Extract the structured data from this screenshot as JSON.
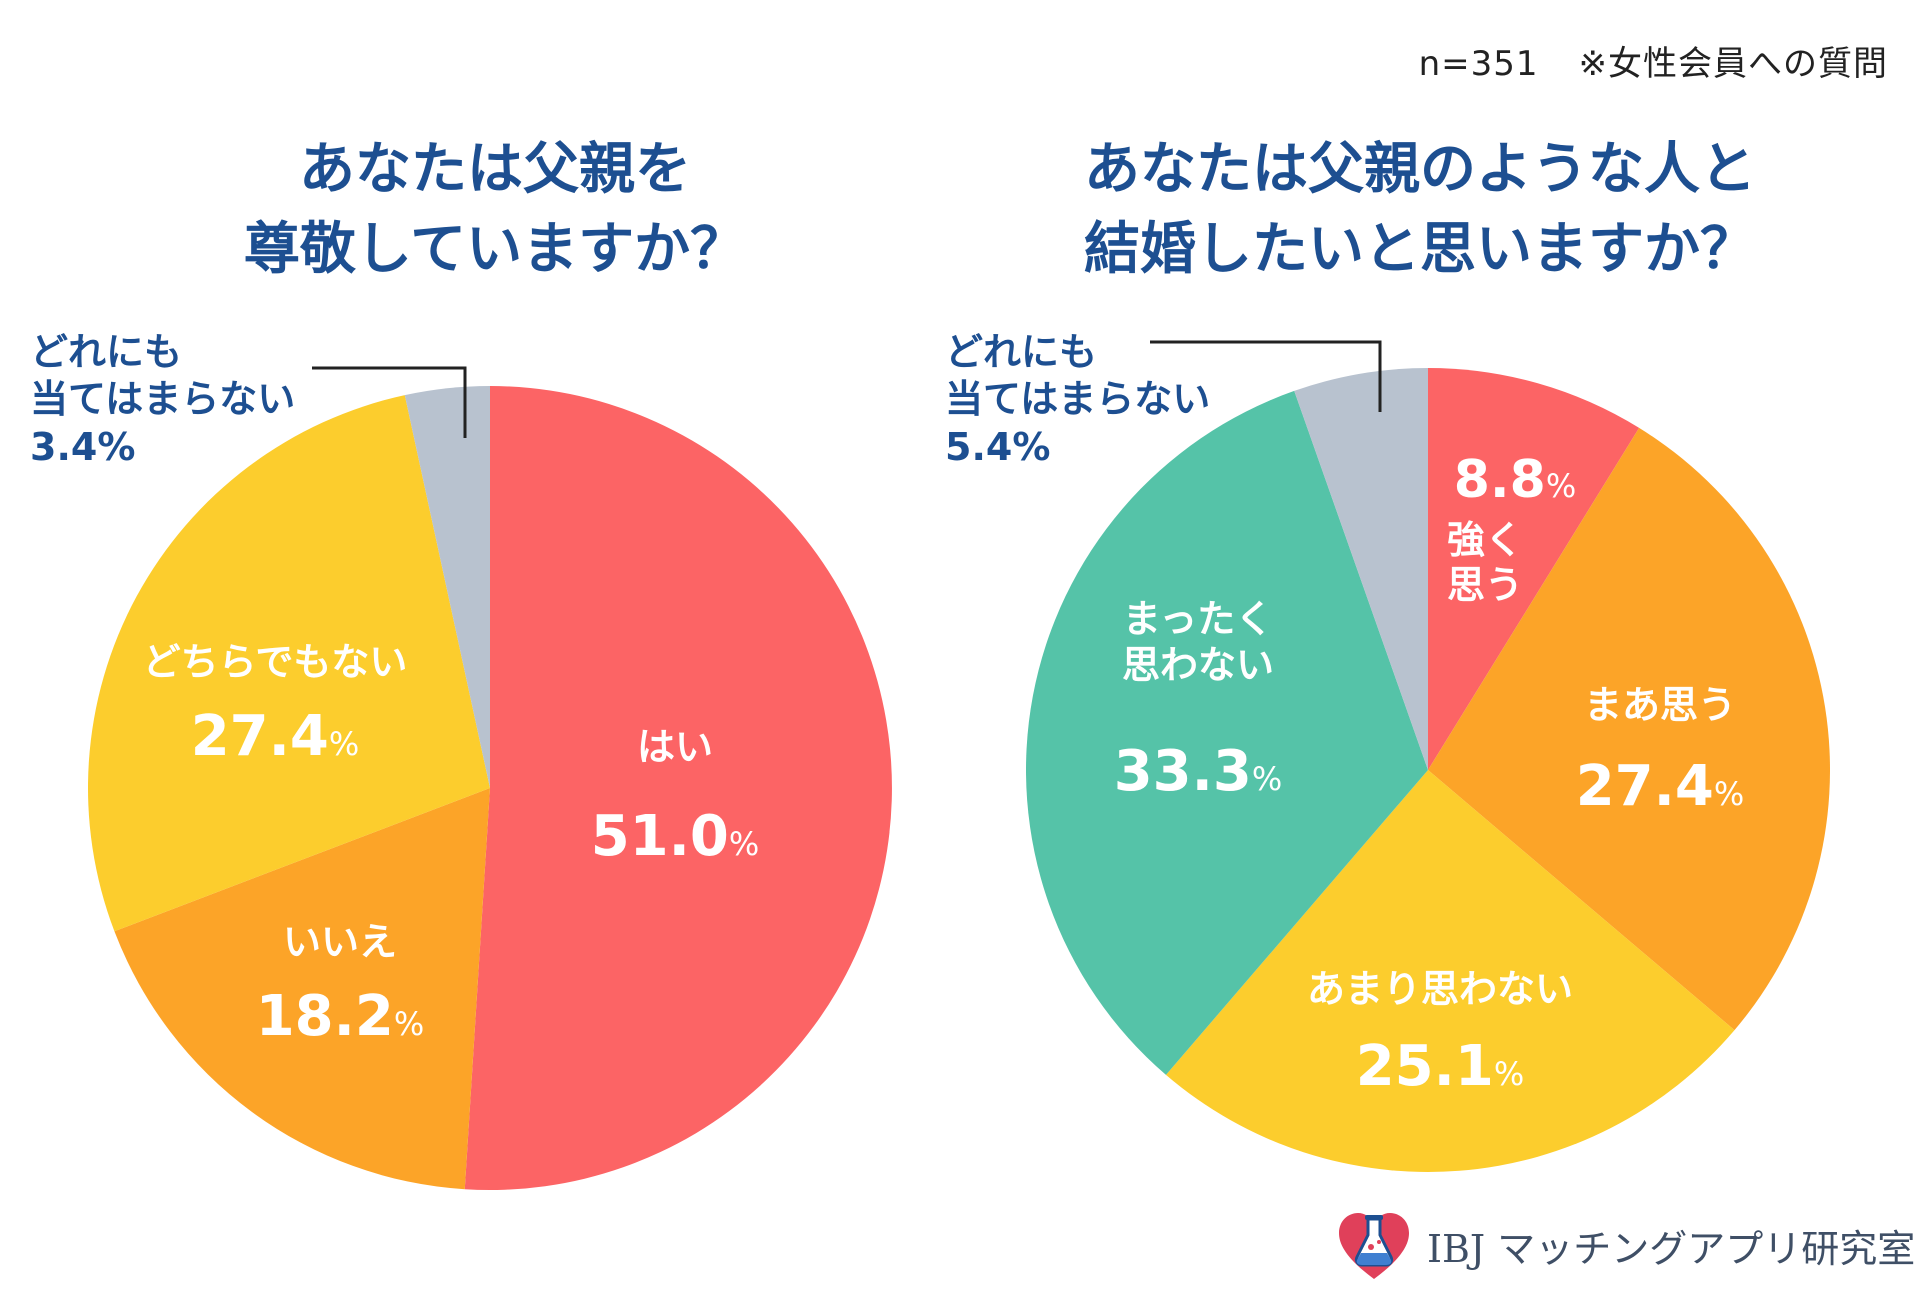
{
  "header": {
    "sample": "n=351",
    "note": "※女性会員への質問"
  },
  "brand": {
    "name": "IBJ マッチングアプリ研究室",
    "icon": "heart-flask-icon"
  },
  "colors": {
    "red": "#fc6465",
    "orange": "#fca428",
    "yellow": "#fccd2d",
    "green": "#55c3a8",
    "gray": "#b8c2cf",
    "title": "#1d4f91",
    "label": "#ffffff"
  },
  "chart_data": [
    {
      "type": "pie",
      "title": "あなたは父親を尊敬していますか？",
      "title_lines": [
        "あなたは父親を",
        "尊敬していますか？"
      ],
      "unit": "%",
      "slices": [
        {
          "label": "はい",
          "value": 51.0,
          "value_text": "51.0",
          "color": "#fc6465"
        },
        {
          "label": "いいえ",
          "value": 18.2,
          "value_text": "18.2",
          "color": "#fca428"
        },
        {
          "label": "どちらでもない",
          "value": 27.4,
          "value_text": "27.4",
          "color": "#fccd2d"
        },
        {
          "label": "どれにも当てはまらない",
          "label_lines": [
            "どれにも",
            "当てはまらない"
          ],
          "value": 3.4,
          "value_text": "3.4%",
          "color": "#b8c2cf"
        }
      ]
    },
    {
      "type": "pie",
      "title": "あなたは父親のような人と結婚したいと思いますか？",
      "title_lines": [
        "あなたは父親のような人と",
        "結婚したいと思いますか？"
      ],
      "unit": "%",
      "slices": [
        {
          "label": "強く思う",
          "label_lines": [
            "強く",
            "思う"
          ],
          "value": 8.8,
          "value_text": "8.8",
          "color": "#fc6465"
        },
        {
          "label": "まあ思う",
          "value": 27.4,
          "value_text": "27.4",
          "color": "#fca428"
        },
        {
          "label": "あまり思わない",
          "value": 25.1,
          "value_text": "25.1",
          "color": "#fccd2d"
        },
        {
          "label": "まったく思わない",
          "label_lines": [
            "まったく",
            "思わない"
          ],
          "value": 33.3,
          "value_text": "33.3",
          "color": "#55c3a8"
        },
        {
          "label": "どれにも当てはまらない",
          "label_lines": [
            "どれにも",
            "当てはまらない"
          ],
          "value": 5.4,
          "value_text": "5.4%",
          "color": "#b8c2cf"
        }
      ]
    }
  ]
}
